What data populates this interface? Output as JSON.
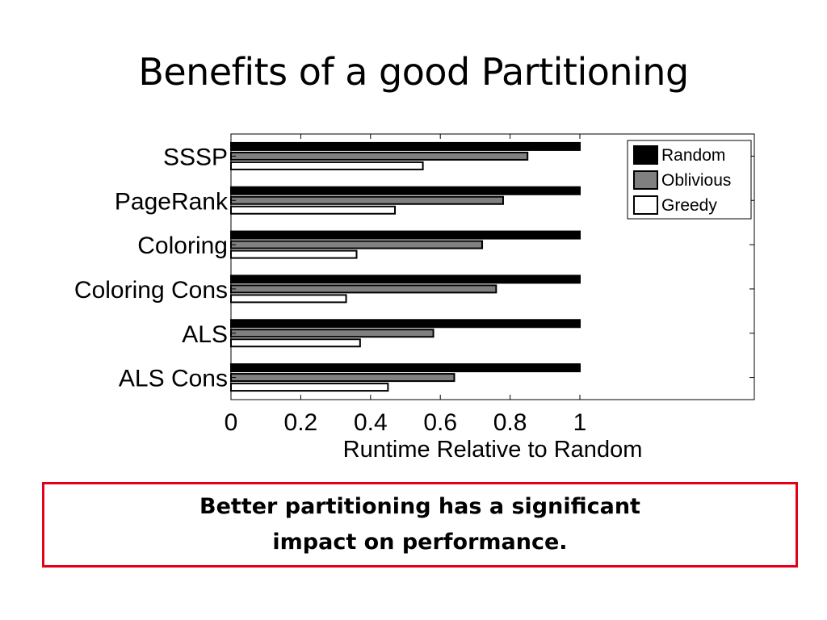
{
  "slide": {
    "title": "Benefits of a good Partitioning",
    "callout_line1": "Better partitioning has a significant",
    "callout_line2": "impact on performance."
  },
  "colors": {
    "random": "#000000",
    "oblivious": "#808080",
    "greedy": "#ffffff",
    "callout_border": "#e3001b"
  },
  "chart_data": {
    "type": "bar",
    "orientation": "horizontal",
    "categories": [
      "SSSP",
      "PageRank",
      "Coloring",
      "Coloring Cons",
      "ALS",
      "ALS Cons"
    ],
    "series": [
      {
        "name": "Random",
        "values": [
          1.0,
          1.0,
          1.0,
          1.0,
          1.0,
          1.0
        ]
      },
      {
        "name": "Oblivious",
        "values": [
          0.85,
          0.78,
          0.72,
          0.76,
          0.58,
          0.64
        ]
      },
      {
        "name": "Greedy",
        "values": [
          0.55,
          0.47,
          0.36,
          0.33,
          0.37,
          0.45
        ]
      }
    ],
    "xlabel": "Runtime Relative to Random",
    "xticks": [
      "0",
      "0.2",
      "0.4",
      "0.6",
      "0.8",
      "1"
    ],
    "xlim": [
      0,
      1.5
    ],
    "legend_position": "top-right",
    "grid": false
  }
}
